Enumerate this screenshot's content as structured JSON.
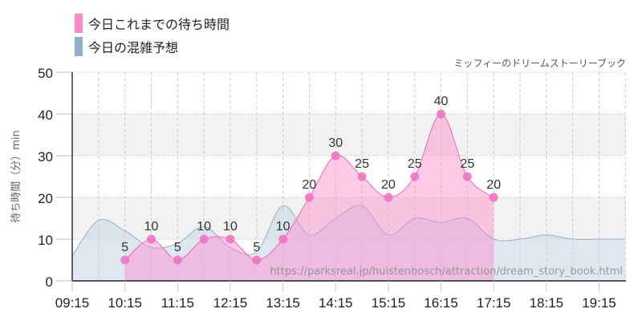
{
  "chart_data": {
    "type": "area",
    "title": "ミッフィーのドリームストーリーブック",
    "xlabel": "",
    "ylabel": "待ち時間（分）min",
    "ylim": [
      0,
      50
    ],
    "yticks": [
      0,
      10,
      20,
      30,
      40,
      50
    ],
    "xticks": [
      "09:15",
      "10:15",
      "11:15",
      "12:15",
      "13:15",
      "14:15",
      "15:15",
      "16:15",
      "17:15",
      "18:15",
      "19:15"
    ],
    "grid": true,
    "legend_position": "top-left",
    "series": [
      {
        "name": "今日これまでの待ち時間",
        "color": "#ff88cc",
        "x": [
          "10:15",
          "10:45",
          "11:15",
          "11:45",
          "12:15",
          "12:45",
          "13:15",
          "13:45",
          "14:15",
          "14:45",
          "15:15",
          "15:45",
          "16:15",
          "16:45",
          "17:15"
        ],
        "values": [
          5,
          10,
          5,
          10,
          10,
          5,
          10,
          20,
          30,
          25,
          20,
          25,
          40,
          25,
          20
        ]
      },
      {
        "name": "今日の混雑予想",
        "color": "#8fb0cc",
        "x": [
          "09:15",
          "09:45",
          "10:15",
          "10:45",
          "11:15",
          "11:45",
          "12:15",
          "12:45",
          "13:15",
          "13:45",
          "14:15",
          "14:45",
          "15:15",
          "15:45",
          "16:15",
          "16:45",
          "17:15",
          "17:45",
          "18:15",
          "18:45",
          "19:15",
          "19:45"
        ],
        "values": [
          6,
          14.5,
          12,
          8,
          9,
          13,
          8,
          7,
          18,
          11,
          15,
          18,
          11,
          15,
          14,
          15,
          10,
          10,
          11,
          10,
          10,
          10
        ]
      }
    ],
    "annotations": [
      "https://parksreal.jp/huistenbosch/attraction/dream_story_book.html"
    ]
  },
  "legend": {
    "items": [
      {
        "label": "今日これまでの待ち時間",
        "color": "#ff88cc"
      },
      {
        "label": "今日の混雑予想",
        "color": "#8fb0cc"
      }
    ]
  },
  "subtitle": "ミッフィーのドリームストーリーブック",
  "axis": {
    "ylabel": "待ち時間（分）min"
  },
  "watermark": "https://parksreal.jp/huistenbosch/attraction/dream_story_book.html"
}
